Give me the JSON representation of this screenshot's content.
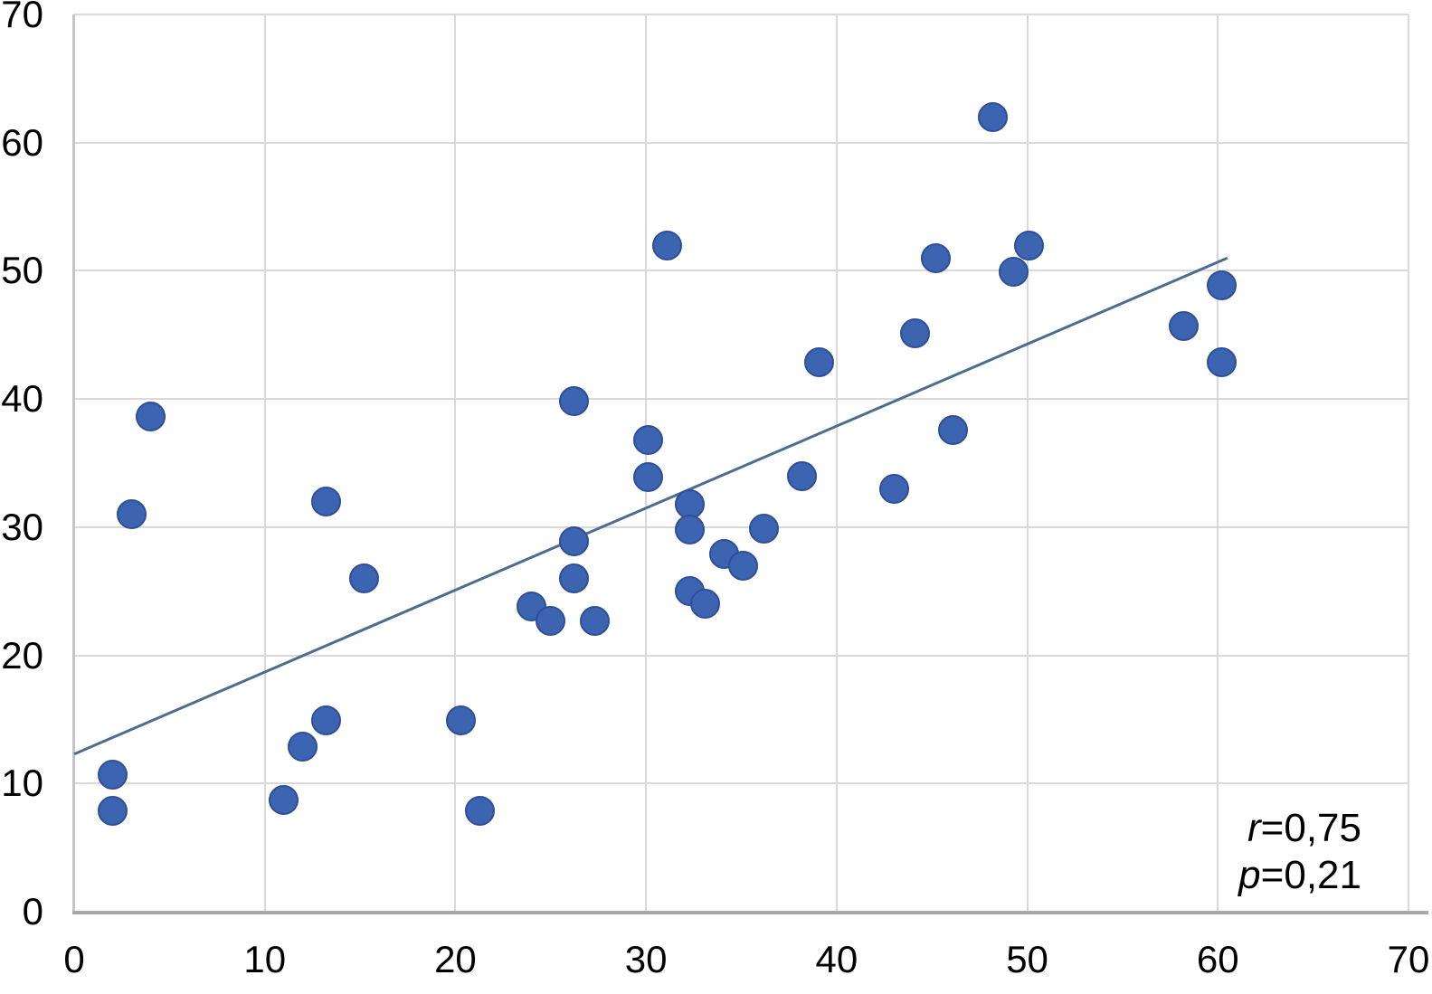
{
  "chart_data": {
    "type": "scatter",
    "title": "",
    "xlabel": "",
    "ylabel": "",
    "xlim": [
      0,
      70
    ],
    "ylim": [
      0,
      70
    ],
    "xticks": [
      "0",
      "10",
      "20",
      "30",
      "40",
      "50",
      "60",
      "70"
    ],
    "yticks": [
      "0",
      "10",
      "20",
      "30",
      "40",
      "50",
      "60",
      "70"
    ],
    "grid": true,
    "legend": "none",
    "points": [
      [
        2,
        10.7
      ],
      [
        2,
        7.9
      ],
      [
        3,
        31
      ],
      [
        4,
        38.6
      ],
      [
        11,
        8.7
      ],
      [
        12,
        12.9
      ],
      [
        13.2,
        32
      ],
      [
        13.2,
        14.9
      ],
      [
        15.2,
        26
      ],
      [
        20.3,
        14.9
      ],
      [
        21.3,
        7.9
      ],
      [
        24,
        23.8
      ],
      [
        25,
        22.7
      ],
      [
        26.2,
        39.8
      ],
      [
        26.2,
        28.9
      ],
      [
        26.2,
        26
      ],
      [
        27.3,
        22.7
      ],
      [
        30.1,
        36.8
      ],
      [
        30.1,
        33.9
      ],
      [
        31.1,
        52
      ],
      [
        32.3,
        31.8
      ],
      [
        32.3,
        29.8
      ],
      [
        32.3,
        25
      ],
      [
        33.1,
        24
      ],
      [
        34.1,
        27.9
      ],
      [
        35.1,
        27
      ],
      [
        36.2,
        29.9
      ],
      [
        38.2,
        34
      ],
      [
        39.1,
        42.9
      ],
      [
        43,
        33
      ],
      [
        44.1,
        45.1
      ],
      [
        45.2,
        51
      ],
      [
        46.1,
        37.6
      ],
      [
        48.2,
        62
      ],
      [
        49.3,
        49.9
      ],
      [
        50.1,
        52
      ],
      [
        58.2,
        45.7
      ],
      [
        60.2,
        48.9
      ],
      [
        60.2,
        42.9
      ]
    ],
    "trendline": {
      "x_start": 0,
      "y_start": 12.3,
      "x_end": 60.5,
      "y_end": 51
    },
    "annotation": {
      "lines": [
        {
          "var": "r",
          "rest": "=0,75"
        },
        {
          "var": "p",
          "rest": "=0,21"
        }
      ]
    },
    "colors": {
      "dot_fill": "#3c64b1",
      "dot_edge": "#2e4f97",
      "trend_line": "#4a6d91",
      "gridline": "#d9d9d9",
      "axis_y": "#c4c4c4",
      "axis_x": "#a8a8a8",
      "text": "#000000",
      "background": "#ffffff"
    }
  }
}
